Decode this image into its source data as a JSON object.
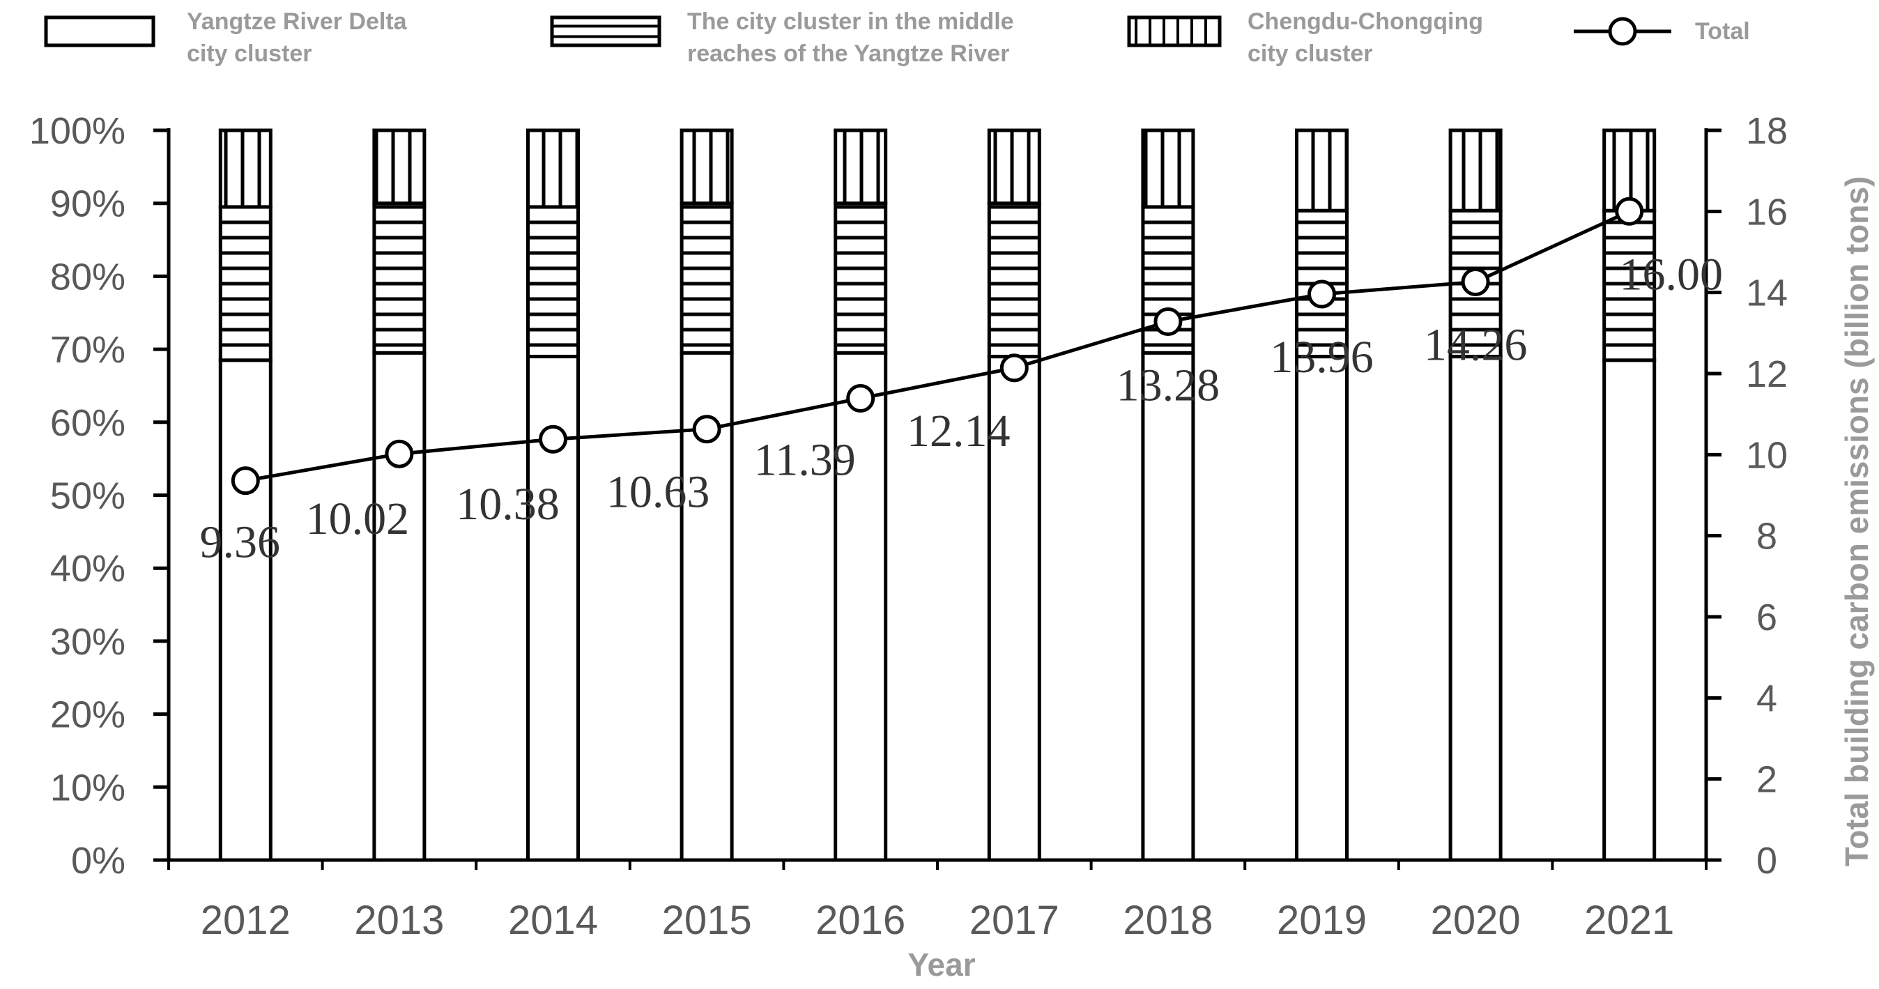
{
  "chart_data": {
    "type": "bar",
    "subtype": "stacked-100-percent-with-line-on-secondary-axis",
    "categories": [
      "2012",
      "2013",
      "2014",
      "2015",
      "2016",
      "2017",
      "2018",
      "2019",
      "2020",
      "2021"
    ],
    "series": [
      {
        "name": "Yangtze River Delta city cluster",
        "type": "bar",
        "axis": "left",
        "pattern": "plain",
        "values": [
          68.5,
          69.5,
          69.0,
          69.5,
          69.5,
          69.0,
          69.5,
          69.0,
          69.0,
          68.5
        ]
      },
      {
        "name": "The city cluster in the middle reaches of the Yangtze River",
        "type": "bar",
        "axis": "left",
        "pattern": "horizontal-lines",
        "values": [
          21.0,
          20.5,
          20.5,
          20.5,
          20.5,
          21.0,
          20.0,
          20.0,
          20.0,
          20.5
        ]
      },
      {
        "name": "Chengdu-Chongqing city cluster",
        "type": "bar",
        "axis": "left",
        "pattern": "vertical-lines",
        "values": [
          10.5,
          10.0,
          10.5,
          10.0,
          10.0,
          10.0,
          10.5,
          11.0,
          11.0,
          11.0
        ]
      },
      {
        "name": "Total",
        "type": "line",
        "axis": "right",
        "marker": "circle",
        "values": [
          9.36,
          10.02,
          10.38,
          10.63,
          11.39,
          12.14,
          13.28,
          13.96,
          14.26,
          16.0
        ],
        "labels": [
          "9.36",
          "10.02",
          "10.38",
          "10.63",
          "11.39",
          "12.14",
          "13.28",
          "13.96",
          "14.26",
          "16.00"
        ]
      }
    ],
    "xlabel": "Year",
    "ylabel": "",
    "y2label": "Total building carbon emissions (billion tons)",
    "ylim": [
      0,
      100
    ],
    "y2lim": [
      0,
      18
    ],
    "yticks": [
      "0%",
      "10%",
      "20%",
      "30%",
      "40%",
      "50%",
      "60%",
      "70%",
      "80%",
      "90%",
      "100%"
    ],
    "y2ticks": [
      "0",
      "2",
      "4",
      "6",
      "8",
      "10",
      "12",
      "14",
      "16",
      "18"
    ],
    "grid": false,
    "legend_position": "top",
    "colors": {
      "bar_fill": "#ffffff",
      "bar_stroke": "#000000",
      "line": "#000000",
      "tick_text": "#595959",
      "legend_text": "#9a9a9a"
    }
  }
}
